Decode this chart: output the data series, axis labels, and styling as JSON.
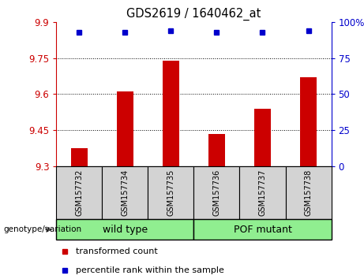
{
  "title": "GDS2619 / 1640462_at",
  "samples": [
    "GSM157732",
    "GSM157734",
    "GSM157735",
    "GSM157736",
    "GSM157737",
    "GSM157738"
  ],
  "transformed_counts": [
    9.375,
    9.61,
    9.74,
    9.435,
    9.54,
    9.67
  ],
  "percentile_ranks": [
    93,
    93,
    94,
    93,
    93,
    94
  ],
  "ylim_left": [
    9.3,
    9.9
  ],
  "ylim_right": [
    0,
    100
  ],
  "yticks_left": [
    9.3,
    9.45,
    9.6,
    9.75,
    9.9
  ],
  "yticks_right": [
    0,
    25,
    50,
    75,
    100
  ],
  "ytick_labels_left": [
    "9.3",
    "9.45",
    "9.6",
    "9.75",
    "9.9"
  ],
  "ytick_labels_right": [
    "0",
    "25",
    "50",
    "75",
    "100%"
  ],
  "hlines": [
    9.45,
    9.6,
    9.75
  ],
  "bar_color": "#cc0000",
  "dot_color": "#0000cc",
  "bar_bottom": 9.3,
  "legend_items": [
    {
      "label": "transformed count",
      "color": "#cc0000"
    },
    {
      "label": "percentile rank within the sample",
      "color": "#0000cc"
    }
  ],
  "left_tick_color": "#cc0000",
  "right_tick_color": "#0000cc",
  "group_labels": [
    "wild type",
    "POF mutant"
  ],
  "group_ranges": [
    [
      0,
      2
    ],
    [
      3,
      5
    ]
  ],
  "group_color": "#90ee90",
  "genotype_label": "genotype/variation"
}
